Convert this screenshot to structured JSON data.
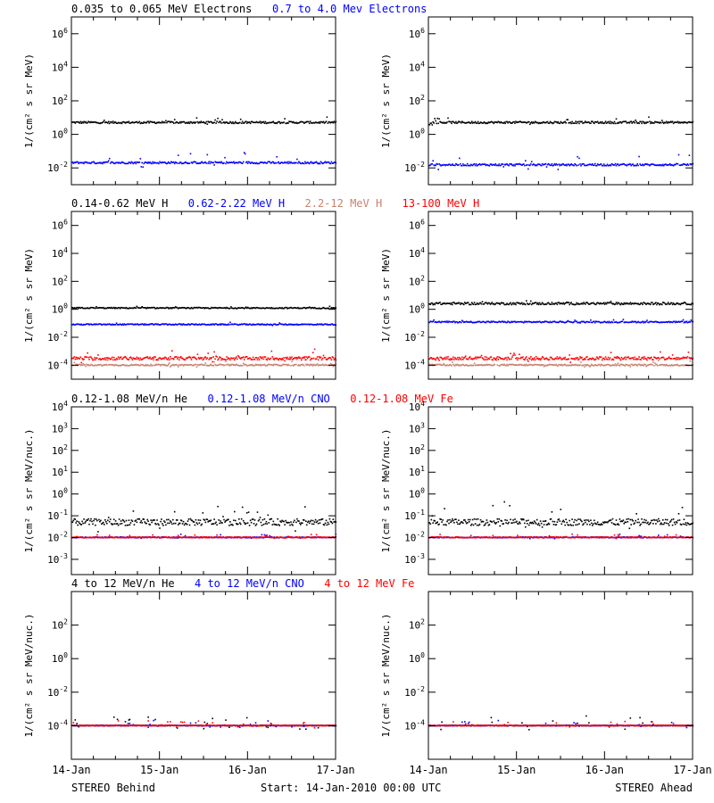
{
  "figure": {
    "footer_left": "STEREO Behind",
    "footer_center": "Start: 14-Jan-2010 00:00 UTC",
    "footer_right": "STEREO Ahead",
    "x_ticks": [
      "14-Jan",
      "15-Jan",
      "16-Jan",
      "17-Jan"
    ]
  },
  "rows": [
    {
      "ylabel": "1/(cm² s sr MeV)",
      "legend": [
        {
          "text": "0.035 to 0.065 MeV Electrons",
          "color": "#000000"
        },
        {
          "text": "0.7 to 4.0 Mev Electrons",
          "color": "#0000ff"
        }
      ]
    },
    {
      "ylabel": "1/(cm² s sr MeV)",
      "legend": [
        {
          "text": "0.14-0.62 MeV H",
          "color": "#000000"
        },
        {
          "text": "0.62-2.22 MeV H",
          "color": "#0000ff"
        },
        {
          "text": "2.2-12 MeV H",
          "color": "#c8826e"
        },
        {
          "text": "13-100 MeV H",
          "color": "#ff0000"
        }
      ]
    },
    {
      "ylabel": "1/(cm² s sr MeV/nuc.)",
      "legend": [
        {
          "text": "0.12-1.08 MeV/n He",
          "color": "#000000"
        },
        {
          "text": "0.12-1.08 MeV/n CNO",
          "color": "#0000ff"
        },
        {
          "text": "0.12-1.08 MeV Fe",
          "color": "#ff0000"
        }
      ]
    },
    {
      "ylabel": "1/(cm² s sr MeV/nuc.)",
      "legend": [
        {
          "text": "4 to 12 MeV/n He",
          "color": "#000000"
        },
        {
          "text": "4 to 12 MeV/n CNO",
          "color": "#0000ff"
        },
        {
          "text": "4 to 12 MeV Fe",
          "color": "#ff0000"
        }
      ]
    }
  ],
  "chart_data": [
    {
      "type": "scatter",
      "spacecraft": "STEREO Behind",
      "y_scale": "log",
      "ylim_exp": [
        -3,
        7
      ],
      "ytick_exps": [
        -2,
        0,
        2,
        4,
        6
      ],
      "xlim_days": [
        0,
        3
      ],
      "series": [
        {
          "name": "0.035 to 0.065 MeV Electrons",
          "color": "#000000",
          "level": 5,
          "spread": 0.06,
          "scatter": 0.1
        },
        {
          "name": "0.7 to 4.0 Mev Electrons",
          "color": "#0000ff",
          "level": 0.02,
          "spread": 0.06,
          "scatter": 0.25
        }
      ]
    },
    {
      "type": "scatter",
      "spacecraft": "STEREO Ahead",
      "y_scale": "log",
      "ylim_exp": [
        -3,
        7
      ],
      "ytick_exps": [
        -2,
        0,
        2,
        4,
        6
      ],
      "xlim_days": [
        0,
        3
      ],
      "series": [
        {
          "name": "0.035 to 0.065 MeV Electrons",
          "color": "#000000",
          "level": 5,
          "spread": 0.06,
          "scatter": 0.1
        },
        {
          "name": "0.7 to 4.0 Mev Electrons",
          "color": "#0000ff",
          "level": 0.015,
          "spread": 0.06,
          "scatter": 0.25
        }
      ]
    },
    {
      "type": "scatter",
      "spacecraft": "STEREO Behind",
      "y_scale": "log",
      "ylim_exp": [
        -5,
        7
      ],
      "ytick_exps": [
        -4,
        -2,
        0,
        2,
        4,
        6
      ],
      "xlim_days": [
        0,
        3
      ],
      "series": [
        {
          "name": "0.14-0.62 MeV H",
          "color": "#000000",
          "level": 1.2,
          "spread": 0.04,
          "scatter": 0.04
        },
        {
          "name": "0.62-2.22 MeV H",
          "color": "#0000ff",
          "level": 0.08,
          "spread": 0.04,
          "scatter": 0.04
        },
        {
          "name": "2.2-12 MeV H",
          "color": "#c8826e",
          "level": 0.0001,
          "spread": 0.05,
          "scatter": 0.15
        },
        {
          "name": "13-100 MeV H",
          "color": "#ff0000",
          "level": 0.0003,
          "spread": 0.12,
          "scatter": 0.2
        }
      ]
    },
    {
      "type": "scatter",
      "spacecraft": "STEREO Ahead",
      "y_scale": "log",
      "ylim_exp": [
        -5,
        7
      ],
      "ytick_exps": [
        -4,
        -2,
        0,
        2,
        4,
        6
      ],
      "xlim_days": [
        0,
        3
      ],
      "series": [
        {
          "name": "0.14-0.62 MeV H",
          "color": "#000000",
          "level": 2.5,
          "spread": 0.08,
          "scatter": 0.05
        },
        {
          "name": "0.62-2.22 MeV H",
          "color": "#0000ff",
          "level": 0.12,
          "spread": 0.05,
          "scatter": 0.05
        },
        {
          "name": "2.2-12 MeV H",
          "color": "#c8826e",
          "level": 0.0001,
          "spread": 0.05,
          "scatter": 0.15
        },
        {
          "name": "13-100 MeV H",
          "color": "#ff0000",
          "level": 0.0003,
          "spread": 0.12,
          "scatter": 0.2
        }
      ]
    },
    {
      "type": "scatter",
      "spacecraft": "STEREO Behind",
      "y_scale": "log",
      "ylim_exp": [
        -3.7,
        4
      ],
      "ytick_exps": [
        -3,
        -2,
        -1,
        0,
        1,
        2,
        3,
        4
      ],
      "xlim_days": [
        0,
        3
      ],
      "series": [
        {
          "name": "0.12-1.08 MeV/n He",
          "color": "#000000",
          "level": 0.05,
          "spread": 0.15,
          "scatter": 0.3
        },
        {
          "name": "0.12-1.08 MeV/n CNO",
          "color": "#0000ff",
          "level": 0.01,
          "spread": 0.02,
          "scatter": 0.05
        },
        {
          "name": "0.12-1.08 MeV Fe",
          "color": "#ff0000",
          "level": 0.01,
          "spread": 0.02,
          "scatter": 0.05
        }
      ]
    },
    {
      "type": "scatter",
      "spacecraft": "STEREO Ahead",
      "y_scale": "log",
      "ylim_exp": [
        -3.7,
        4
      ],
      "ytick_exps": [
        -3,
        -2,
        -1,
        0,
        1,
        2,
        3,
        4
      ],
      "xlim_days": [
        0,
        3
      ],
      "series": [
        {
          "name": "0.12-1.08 MeV/n He",
          "color": "#000000",
          "level": 0.05,
          "spread": 0.15,
          "scatter": 0.3
        },
        {
          "name": "0.12-1.08 MeV/n CNO",
          "color": "#0000ff",
          "level": 0.01,
          "spread": 0.02,
          "scatter": 0.05
        },
        {
          "name": "0.12-1.08 MeV Fe",
          "color": "#ff0000",
          "level": 0.01,
          "spread": 0.02,
          "scatter": 0.05
        }
      ]
    },
    {
      "type": "scatter",
      "spacecraft": "STEREO Behind",
      "y_scale": "log",
      "ylim_exp": [
        -6,
        4
      ],
      "ytick_exps": [
        -4,
        -2,
        0,
        2
      ],
      "xlim_days": [
        0,
        3
      ],
      "series": [
        {
          "name": "4 to 12 MeV/n He",
          "color": "#000000",
          "level": 0.0001,
          "spread": 0.02,
          "scatter": 0.2
        },
        {
          "name": "4 to 12 MeV/n CNO",
          "color": "#0000ff",
          "level": 0.0001,
          "spread": 0.02,
          "scatter": 0.1
        },
        {
          "name": "4 to 12 MeV Fe",
          "color": "#ff0000",
          "level": 0.0001,
          "spread": 0.02,
          "scatter": 0.1
        }
      ]
    },
    {
      "type": "scatter",
      "spacecraft": "STEREO Ahead",
      "y_scale": "log",
      "ylim_exp": [
        -6,
        4
      ],
      "ytick_exps": [
        -4,
        -2,
        0,
        2
      ],
      "xlim_days": [
        0,
        3
      ],
      "series": [
        {
          "name": "4 to 12 MeV/n He",
          "color": "#000000",
          "level": 0.0001,
          "spread": 0.02,
          "scatter": 0.2
        },
        {
          "name": "4 to 12 MeV/n CNO",
          "color": "#0000ff",
          "level": 0.0001,
          "spread": 0.02,
          "scatter": 0.1
        },
        {
          "name": "4 to 12 MeV Fe",
          "color": "#ff0000",
          "level": 0.0001,
          "spread": 0.02,
          "scatter": 0.1
        }
      ]
    }
  ]
}
